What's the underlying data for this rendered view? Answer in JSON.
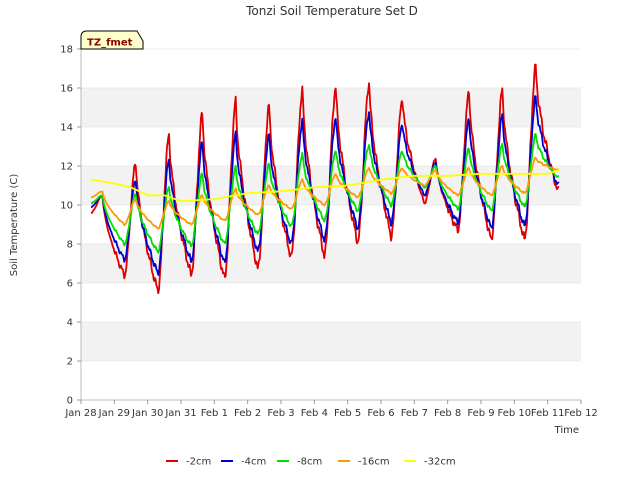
{
  "chart_data": {
    "type": "line",
    "title": "Tonzi Soil Temperature Set D",
    "xlabel": "Time",
    "ylabel": "Soil Temperature (C)",
    "badge": "TZ_fmet",
    "ylim": [
      0,
      18
    ],
    "yticks": [
      0,
      2,
      4,
      6,
      8,
      10,
      12,
      14,
      16,
      18
    ],
    "xlim": [
      0,
      15
    ],
    "xtick_labels": [
      "Jan 28",
      "Jan 29",
      "Jan 30",
      "Jan 31",
      "Feb 1",
      "Feb 2",
      "Feb 3",
      "Feb 4",
      "Feb 5",
      "Feb 6",
      "Feb 7",
      "Feb 8",
      "Feb 9",
      "Feb 10",
      "Feb 11",
      "Feb 12"
    ],
    "x_start": 0.3,
    "x_end": 14.35,
    "grid": "horizontal bands",
    "legend_position": "bottom",
    "series": [
      {
        "name": "-2cm",
        "color": "#dd0000",
        "daily_min": [
          9.6,
          6.4,
          5.6,
          6.4,
          6.2,
          6.7,
          7.3,
          7.4,
          8.1,
          8.4,
          10.1,
          8.7,
          8.2,
          8.2,
          10.7
        ],
        "daily_max": [
          10.5,
          12.2,
          13.6,
          14.7,
          15.3,
          15.1,
          15.9,
          16.1,
          16.3,
          15.5,
          12.4,
          15.8,
          15.9,
          17.1
        ]
      },
      {
        "name": "-4cm",
        "color": "#0000cc",
        "daily_min": [
          9.9,
          7.2,
          6.5,
          7.1,
          7.0,
          7.6,
          8.0,
          8.2,
          8.8,
          9.1,
          10.5,
          9.1,
          8.8,
          8.9,
          11.0
        ],
        "daily_max": [
          10.5,
          11.3,
          12.3,
          13.2,
          13.6,
          13.6,
          14.3,
          14.5,
          14.8,
          14.2,
          12.2,
          14.4,
          14.6,
          15.5
        ]
      },
      {
        "name": "-8cm",
        "color": "#00dd00",
        "daily_min": [
          10.1,
          8.0,
          7.6,
          7.9,
          8.0,
          8.5,
          8.9,
          9.2,
          9.7,
          10.0,
          10.9,
          9.8,
          9.7,
          9.9,
          11.4
        ],
        "daily_max": [
          10.5,
          10.6,
          10.9,
          11.6,
          11.9,
          12.1,
          12.6,
          12.8,
          13.1,
          12.8,
          12.0,
          12.9,
          13.1,
          13.6
        ]
      },
      {
        "name": "-16cm",
        "color": "#ff9900",
        "daily_min": [
          10.4,
          9.0,
          8.8,
          9.0,
          9.2,
          9.5,
          9.8,
          10.0,
          10.4,
          10.6,
          11.0,
          10.5,
          10.5,
          10.6,
          11.8
        ],
        "daily_max": [
          10.7,
          10.3,
          10.2,
          10.5,
          10.8,
          11.0,
          11.3,
          11.6,
          11.9,
          11.9,
          11.8,
          11.9,
          12.0,
          12.4
        ]
      },
      {
        "name": "-32cm",
        "color": "#ffff00",
        "points": [
          [
            0.3,
            11.3
          ],
          [
            1.0,
            11.1
          ],
          [
            1.5,
            10.9
          ],
          [
            2.0,
            10.5
          ],
          [
            2.5,
            10.5
          ],
          [
            3.0,
            10.2
          ],
          [
            4.0,
            10.3
          ],
          [
            5.0,
            10.6
          ],
          [
            6.0,
            10.7
          ],
          [
            7.0,
            10.9
          ],
          [
            8.0,
            11.0
          ],
          [
            9.0,
            11.3
          ],
          [
            10.0,
            11.5
          ],
          [
            11.0,
            11.5
          ],
          [
            12.0,
            11.6
          ],
          [
            13.0,
            11.6
          ],
          [
            14.0,
            11.6
          ],
          [
            14.35,
            11.8
          ]
        ]
      }
    ]
  }
}
